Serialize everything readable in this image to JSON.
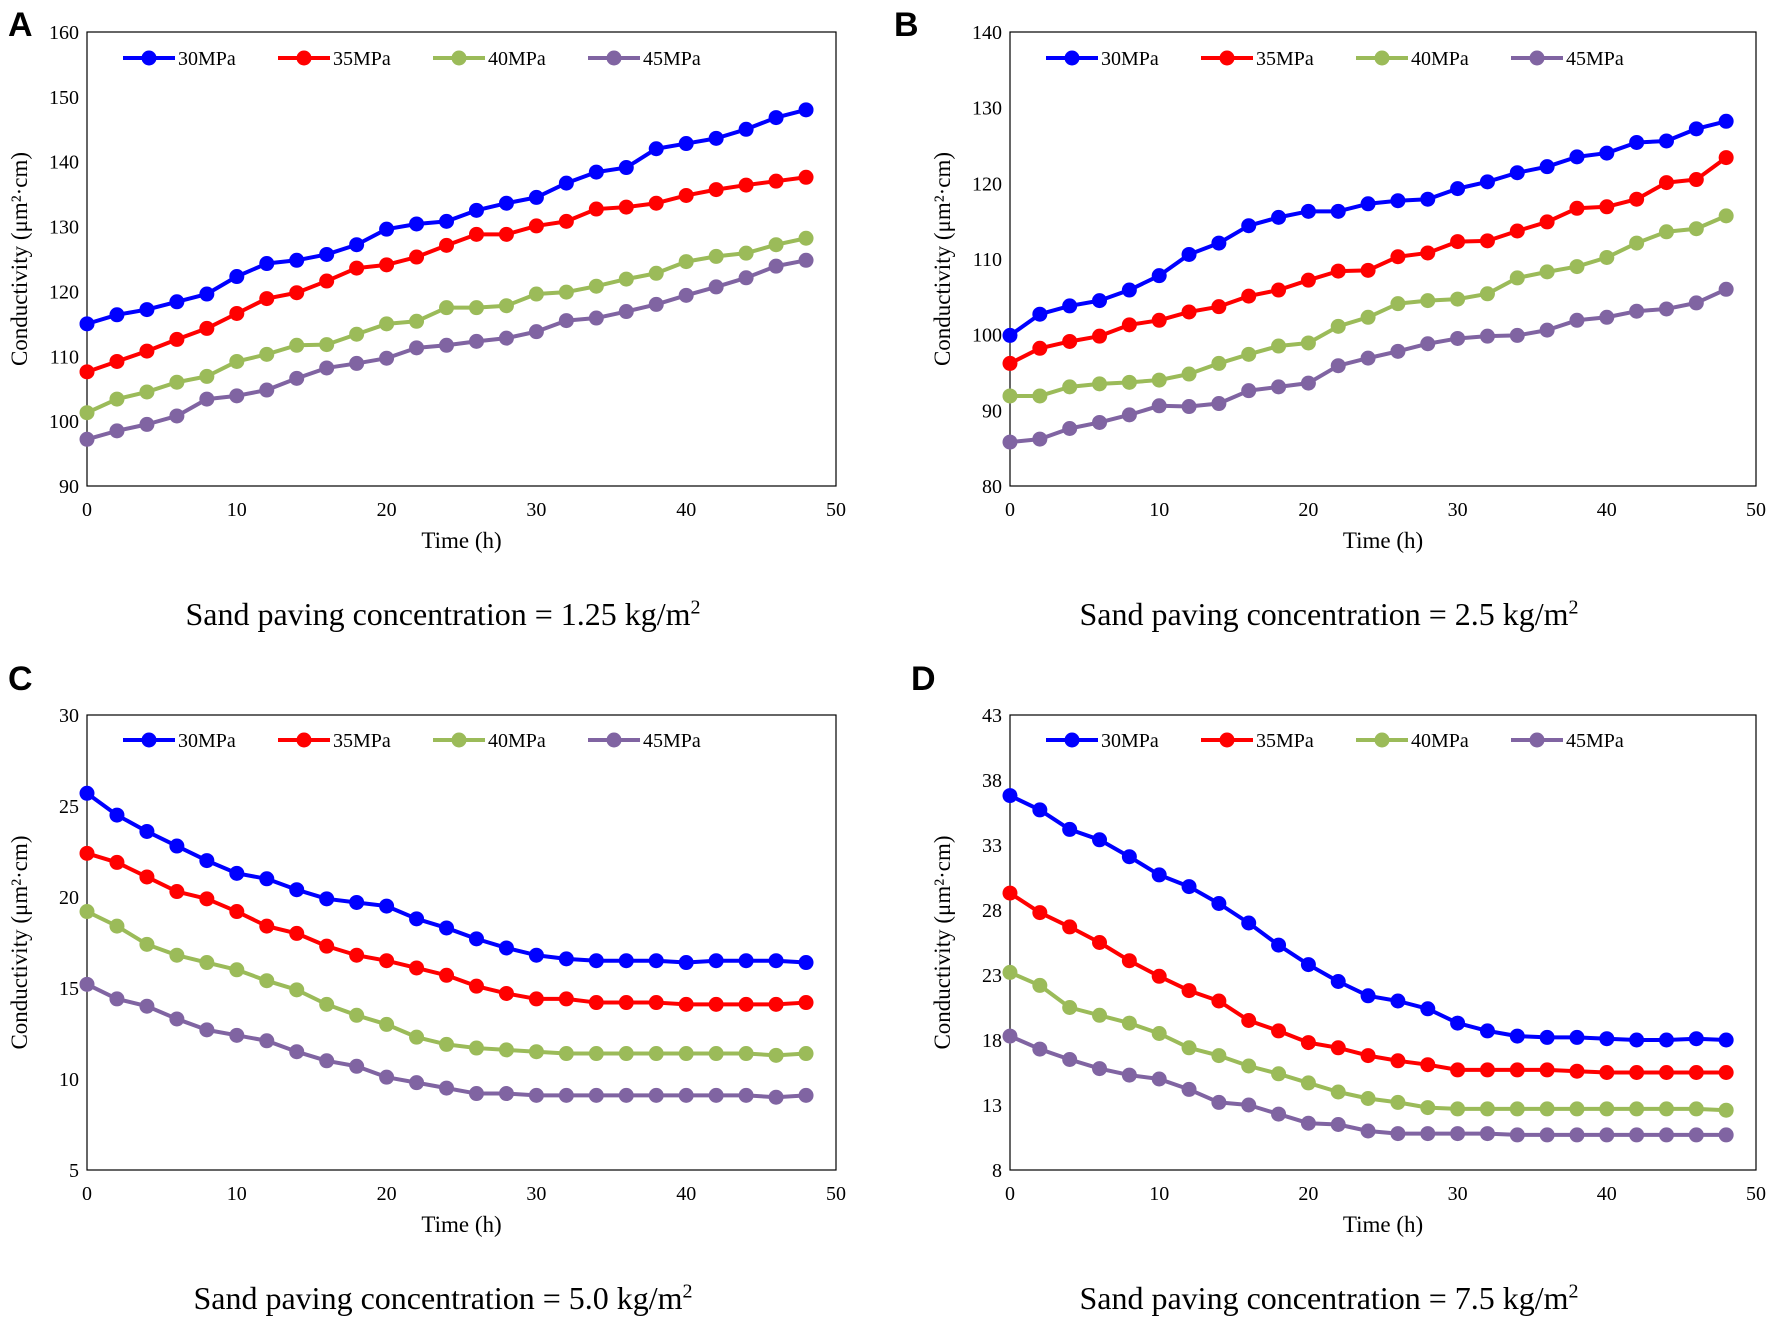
{
  "figure": {
    "panels": [
      {
        "letter": "A",
        "caption": "Sand paving concentration = 1.25 kg/m",
        "caption_sup": "2"
      },
      {
        "letter": "B",
        "caption": "Sand paving concentration = 2.5 kg/m",
        "caption_sup": "2"
      },
      {
        "letter": "C",
        "caption": "Sand paving concentration = 5.0 kg/m",
        "caption_sup": "2"
      },
      {
        "letter": "D",
        "caption": "Sand paving concentration = 7.5 kg/m",
        "caption_sup": "2"
      }
    ]
  },
  "colors": {
    "30MPa": "#0000ff",
    "35MPa": "#ff0000",
    "40MPa": "#9bbb59",
    "45MPa": "#8064a2"
  },
  "chart_data": [
    {
      "type": "line",
      "panel": "A",
      "title": "",
      "xlabel": "Time (h)",
      "ylabel": "Conductivity (μm²·cm)",
      "xlim": [
        0,
        50
      ],
      "ylim": [
        90,
        160
      ],
      "xticks": [
        0,
        10,
        20,
        30,
        40,
        50
      ],
      "yticks": [
        90,
        100,
        110,
        120,
        130,
        140,
        150,
        160
      ],
      "grid": false,
      "legend": "top-left",
      "x": [
        0,
        2,
        4,
        6,
        8,
        10,
        12,
        14,
        16,
        18,
        20,
        22,
        24,
        26,
        28,
        30,
        32,
        34,
        36,
        38,
        40,
        42,
        44,
        46,
        48
      ],
      "series": [
        {
          "name": "30MPa",
          "values": [
            115.0,
            116.4,
            117.2,
            118.4,
            119.6,
            122.3,
            124.3,
            124.8,
            125.7,
            127.2,
            129.6,
            130.4,
            130.8,
            132.5,
            133.6,
            134.5,
            136.7,
            138.4,
            139.1,
            142.0,
            142.8,
            143.6,
            145.0,
            146.8,
            148.0
          ]
        },
        {
          "name": "35MPa",
          "values": [
            107.6,
            109.2,
            110.8,
            112.6,
            114.3,
            116.6,
            118.9,
            119.8,
            121.6,
            123.6,
            124.1,
            125.3,
            127.1,
            128.8,
            128.8,
            130.1,
            130.8,
            132.7,
            133.0,
            133.6,
            134.8,
            135.7,
            136.4,
            137.0,
            137.6
          ]
        },
        {
          "name": "40MPa",
          "values": [
            101.3,
            103.4,
            104.5,
            106.0,
            106.9,
            109.2,
            110.3,
            111.7,
            111.8,
            113.4,
            115.0,
            115.4,
            117.5,
            117.5,
            117.8,
            119.6,
            119.9,
            120.8,
            121.9,
            122.8,
            124.6,
            125.4,
            125.9,
            127.2,
            128.2
          ]
        },
        {
          "name": "45MPa",
          "values": [
            97.2,
            98.5,
            99.5,
            100.8,
            103.4,
            103.9,
            104.8,
            106.6,
            108.2,
            108.9,
            109.7,
            111.3,
            111.7,
            112.3,
            112.8,
            113.8,
            115.5,
            115.9,
            116.9,
            118.0,
            119.4,
            120.7,
            122.1,
            123.9,
            124.8
          ]
        }
      ]
    },
    {
      "type": "line",
      "panel": "B",
      "title": "",
      "xlabel": "Time (h)",
      "ylabel": "Conductivity (μm²·cm)",
      "xlim": [
        0,
        50
      ],
      "ylim": [
        80,
        140
      ],
      "xticks": [
        0,
        10,
        20,
        30,
        40,
        50
      ],
      "yticks": [
        80,
        90,
        100,
        110,
        120,
        130,
        140
      ],
      "grid": false,
      "legend": "top-left",
      "x": [
        0,
        2,
        4,
        6,
        8,
        10,
        12,
        14,
        16,
        18,
        20,
        22,
        24,
        26,
        28,
        30,
        32,
        34,
        36,
        38,
        40,
        42,
        44,
        46,
        48
      ],
      "series": [
        {
          "name": "30MPa",
          "values": [
            99.9,
            102.7,
            103.8,
            104.5,
            105.9,
            107.8,
            110.6,
            112.1,
            114.4,
            115.5,
            116.3,
            116.3,
            117.3,
            117.7,
            117.9,
            119.3,
            120.2,
            121.4,
            122.2,
            123.5,
            124.0,
            125.4,
            125.6,
            127.2,
            128.2
          ]
        },
        {
          "name": "35MPa",
          "values": [
            96.2,
            98.2,
            99.1,
            99.8,
            101.3,
            101.9,
            103.0,
            103.7,
            105.1,
            105.9,
            107.2,
            108.4,
            108.5,
            110.3,
            110.8,
            112.3,
            112.4,
            113.7,
            114.9,
            116.7,
            116.9,
            117.9,
            120.1,
            120.5,
            123.4
          ]
        },
        {
          "name": "40MPa",
          "values": [
            91.9,
            91.9,
            93.1,
            93.5,
            93.7,
            94.0,
            94.8,
            96.2,
            97.4,
            98.5,
            98.9,
            101.1,
            102.3,
            104.1,
            104.5,
            104.7,
            105.4,
            107.5,
            108.3,
            109.0,
            110.2,
            112.1,
            113.6,
            114.0,
            115.7
          ]
        },
        {
          "name": "45MPa",
          "values": [
            85.8,
            86.2,
            87.6,
            88.4,
            89.4,
            90.6,
            90.5,
            90.9,
            92.6,
            93.1,
            93.6,
            95.9,
            96.9,
            97.8,
            98.8,
            99.5,
            99.8,
            99.9,
            100.6,
            101.9,
            102.3,
            103.1,
            103.4,
            104.2,
            106.0
          ]
        }
      ]
    },
    {
      "type": "line",
      "panel": "C",
      "title": "",
      "xlabel": "Time (h)",
      "ylabel": "Conductivity (μm²·cm)",
      "xlim": [
        0,
        50
      ],
      "ylim": [
        5,
        30
      ],
      "xticks": [
        0,
        10,
        20,
        30,
        40,
        50
      ],
      "yticks": [
        5,
        10,
        15,
        20,
        25,
        30
      ],
      "grid": false,
      "legend": "top-left",
      "x": [
        0,
        2,
        4,
        6,
        8,
        10,
        12,
        14,
        16,
        18,
        20,
        22,
        24,
        26,
        28,
        30,
        32,
        34,
        36,
        38,
        40,
        42,
        44,
        46,
        48
      ],
      "series": [
        {
          "name": "30MPa",
          "values": [
            25.7,
            24.5,
            23.6,
            22.8,
            22.0,
            21.3,
            21.0,
            20.4,
            19.9,
            19.7,
            19.5,
            18.8,
            18.3,
            17.7,
            17.2,
            16.8,
            16.6,
            16.5,
            16.5,
            16.5,
            16.4,
            16.5,
            16.5,
            16.5,
            16.4
          ]
        },
        {
          "name": "35MPa",
          "values": [
            22.4,
            21.9,
            21.1,
            20.3,
            19.9,
            19.2,
            18.4,
            18.0,
            17.3,
            16.8,
            16.5,
            16.1,
            15.7,
            15.1,
            14.7,
            14.4,
            14.4,
            14.2,
            14.2,
            14.2,
            14.1,
            14.1,
            14.1,
            14.1,
            14.2
          ]
        },
        {
          "name": "40MPa",
          "values": [
            19.2,
            18.4,
            17.4,
            16.8,
            16.4,
            16.0,
            15.4,
            14.9,
            14.1,
            13.5,
            13.0,
            12.3,
            11.9,
            11.7,
            11.6,
            11.5,
            11.4,
            11.4,
            11.4,
            11.4,
            11.4,
            11.4,
            11.4,
            11.3,
            11.4
          ]
        },
        {
          "name": "45MPa",
          "values": [
            15.2,
            14.4,
            14.0,
            13.3,
            12.7,
            12.4,
            12.1,
            11.5,
            11.0,
            10.7,
            10.1,
            9.8,
            9.5,
            9.2,
            9.2,
            9.1,
            9.1,
            9.1,
            9.1,
            9.1,
            9.1,
            9.1,
            9.1,
            9.0,
            9.1
          ]
        }
      ]
    },
    {
      "type": "line",
      "panel": "D",
      "title": "",
      "xlabel": "Time (h)",
      "ylabel": "Conductivity (μm²·cm)",
      "xlim": [
        0,
        50
      ],
      "ylim": [
        8,
        43
      ],
      "xticks": [
        0,
        10,
        20,
        30,
        40,
        50
      ],
      "yticks": [
        8,
        13,
        18,
        23,
        28,
        33,
        38,
        43
      ],
      "grid": false,
      "legend": "top-left",
      "x": [
        0,
        2,
        4,
        6,
        8,
        10,
        12,
        14,
        16,
        18,
        20,
        22,
        24,
        26,
        28,
        30,
        32,
        34,
        36,
        38,
        40,
        42,
        44,
        46,
        48
      ],
      "series": [
        {
          "name": "30MPa",
          "values": [
            36.8,
            35.7,
            34.2,
            33.4,
            32.1,
            30.7,
            29.8,
            28.5,
            27.0,
            25.3,
            23.8,
            22.5,
            21.4,
            21.0,
            20.4,
            19.3,
            18.7,
            18.3,
            18.2,
            18.2,
            18.1,
            18.0,
            18.0,
            18.1,
            18.0
          ]
        },
        {
          "name": "35MPa",
          "values": [
            29.3,
            27.8,
            26.7,
            25.5,
            24.1,
            22.9,
            21.8,
            21.0,
            19.5,
            18.7,
            17.8,
            17.4,
            16.8,
            16.4,
            16.1,
            15.7,
            15.7,
            15.7,
            15.7,
            15.6,
            15.5,
            15.5,
            15.5,
            15.5,
            15.5
          ]
        },
        {
          "name": "40MPa",
          "values": [
            23.2,
            22.2,
            20.5,
            19.9,
            19.3,
            18.5,
            17.4,
            16.8,
            16.0,
            15.4,
            14.7,
            14.0,
            13.5,
            13.2,
            12.8,
            12.7,
            12.7,
            12.7,
            12.7,
            12.7,
            12.7,
            12.7,
            12.7,
            12.7,
            12.6
          ]
        },
        {
          "name": "45MPa",
          "values": [
            18.3,
            17.3,
            16.5,
            15.8,
            15.3,
            15.0,
            14.2,
            13.2,
            13.0,
            12.3,
            11.6,
            11.5,
            11.0,
            10.8,
            10.8,
            10.8,
            10.8,
            10.7,
            10.7,
            10.7,
            10.7,
            10.7,
            10.7,
            10.7,
            10.7
          ]
        }
      ]
    }
  ]
}
